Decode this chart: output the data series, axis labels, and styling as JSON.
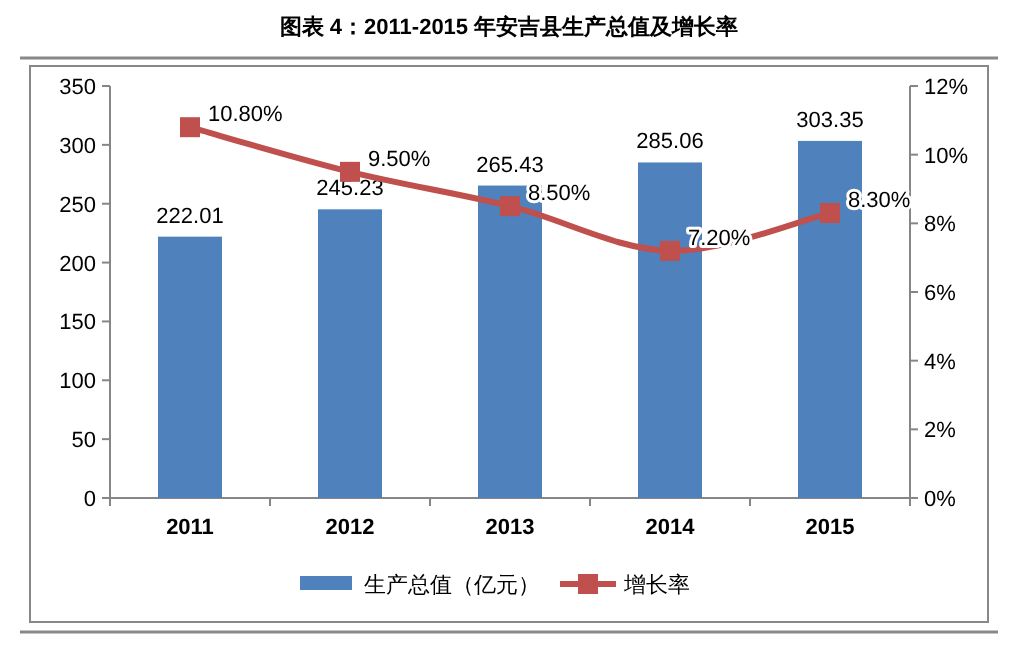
{
  "chart_data": {
    "type": "bar",
    "title": "图表 4：2011-2015 年安吉县生产总值及增长率",
    "categories": [
      "2011",
      "2012",
      "2013",
      "2014",
      "2015"
    ],
    "series": [
      {
        "name": "生产总值（亿元）",
        "color": "#4f81bd",
        "values": [
          222.01,
          245.23,
          265.43,
          285.06,
          303.35
        ],
        "value_labels": [
          "222.01",
          "245.23",
          "265.43",
          "285.06",
          "303.35"
        ]
      },
      {
        "name": "增长率",
        "type": "line",
        "axis": "y2",
        "color": "#c0504d",
        "marker": "square",
        "values": [
          10.8,
          9.5,
          8.5,
          7.2,
          8.3
        ],
        "value_labels": [
          "10.80%",
          "9.50%",
          "8.50%",
          "7.20%",
          "8.30%"
        ]
      }
    ],
    "ylim": [
      0,
      350
    ],
    "yticks": [
      0,
      50,
      100,
      150,
      200,
      250,
      300,
      350
    ],
    "y2lim": [
      0,
      12
    ],
    "y2ticks": [
      {
        "value": 0,
        "label": "0%"
      },
      {
        "value": 2,
        "label": "2%"
      },
      {
        "value": 4,
        "label": "4%"
      },
      {
        "value": 6,
        "label": "6%"
      },
      {
        "value": 8,
        "label": "8%"
      },
      {
        "value": 10,
        "label": "10%"
      },
      {
        "value": 12,
        "label": "12%"
      }
    ],
    "legend": "bottom",
    "grid": false
  }
}
